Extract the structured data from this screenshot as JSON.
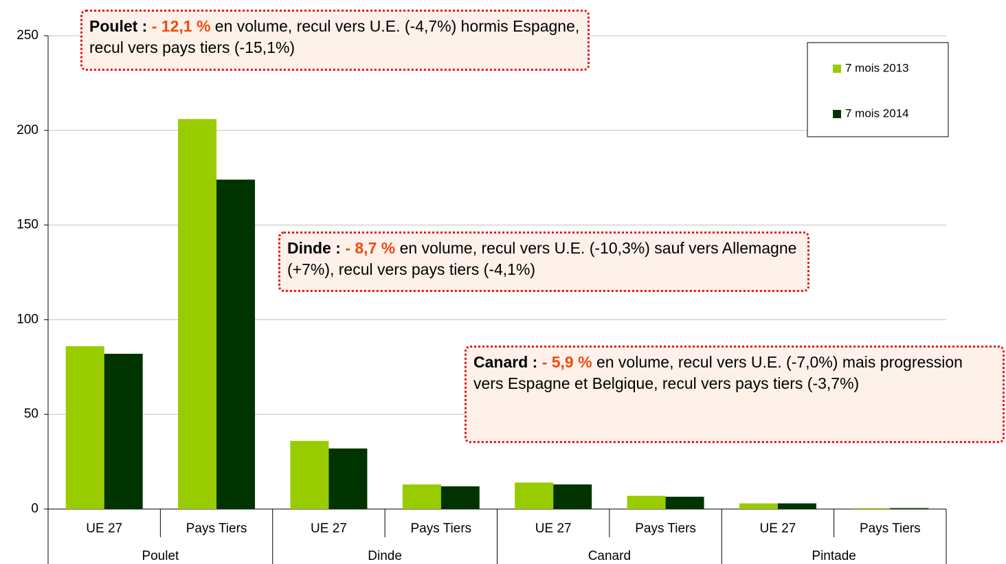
{
  "chart_data": {
    "type": "bar",
    "categories": [
      "UE 27",
      "Pays Tiers",
      "UE 27",
      "Pays Tiers",
      "UE 27",
      "Pays Tiers",
      "UE 27",
      "Pays Tiers"
    ],
    "groups": [
      "Poulet",
      "Dinde",
      "Canard",
      "Pintade"
    ],
    "series": [
      {
        "name": "7 mois 2013",
        "color": "#99cc00",
        "values": [
          86,
          206,
          36,
          13,
          14,
          7,
          3,
          0.5
        ]
      },
      {
        "name": "7 mois 2014",
        "color": "#003300",
        "values": [
          82,
          174,
          32,
          12,
          13,
          6.5,
          3,
          0.5
        ]
      }
    ],
    "ylim": [
      0,
      250
    ],
    "yticks": [
      0,
      50,
      100,
      150,
      200,
      250
    ],
    "grid": true,
    "legend": "upper right",
    "annotations": [
      {
        "label": "Poulet :",
        "change": "- 12,1 %",
        "text": "en volume, recul vers U.E. (-4,7%) hormis Espagne, recul vers pays tiers (-15,1%)"
      },
      {
        "label": "Dinde :",
        "change": "- 8,7 %",
        "text": "en volume, recul vers U.E. (-10,3%) sauf vers Allemagne (+7%), recul vers pays tiers (-4,1%)"
      },
      {
        "label": "Canard :",
        "change": "- 5,9 %",
        "text": "en volume, recul vers U.E. (-7,0%) mais progression vers Espagne et Belgique, recul vers pays tiers (-3,7%)"
      }
    ]
  }
}
